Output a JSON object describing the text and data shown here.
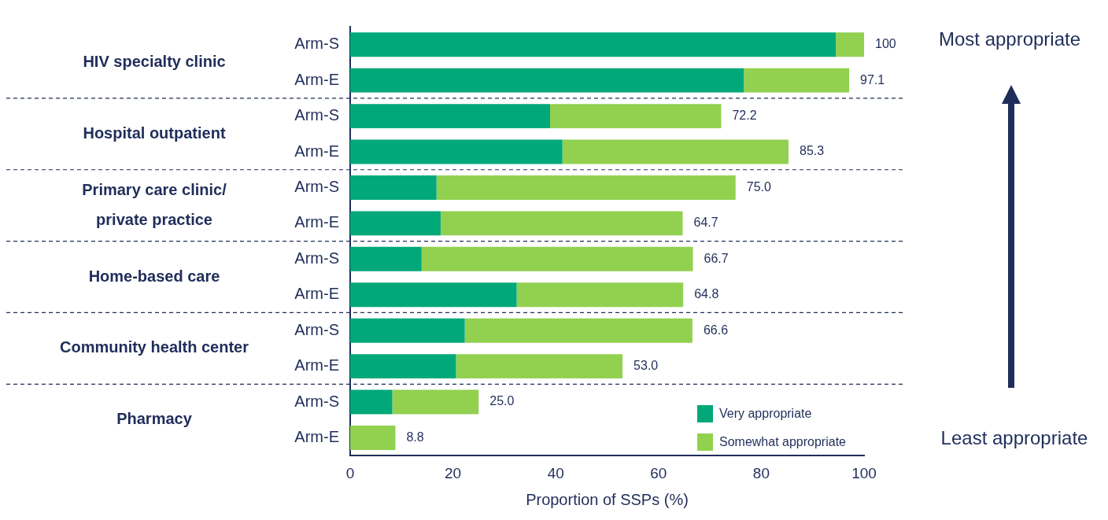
{
  "chart_data": {
    "type": "bar",
    "orientation": "horizontal",
    "stacked": true,
    "categories": [
      "Arm-S",
      "Arm-E",
      "Arm-S",
      "Arm-E",
      "Arm-S",
      "Arm-E",
      "Arm-S",
      "Arm-E",
      "Arm-S",
      "Arm-E",
      "Arm-S",
      "Arm-E"
    ],
    "series": [
      {
        "name": "Very appropriate",
        "color": "#00a87a",
        "values": [
          94.5,
          76.6,
          38.9,
          41.3,
          16.8,
          17.6,
          13.9,
          32.4,
          22.3,
          20.6,
          8.2,
          0
        ]
      },
      {
        "name": "Somewhat appropriate",
        "color": "#92d050",
        "values": [
          5.5,
          20.5,
          33.3,
          44.0,
          58.2,
          47.1,
          52.8,
          32.4,
          44.3,
          32.4,
          16.8,
          8.8
        ]
      }
    ],
    "totals": [
      "100",
      "97.1",
      "72.2",
      "85.3",
      "75.0",
      "64.7",
      "66.7",
      "64.8",
      "66.6",
      "53.0",
      "25.0",
      "8.8"
    ],
    "xlim": [
      0,
      100
    ],
    "xticks": [
      0,
      20,
      40,
      60,
      80,
      100
    ],
    "xlabel": "Proportion of SSPs (%)",
    "grid": false,
    "legend": "bottom right",
    "annotations": [
      "HIV specialty clinic",
      "Hospital outpatient",
      "Primary care clinic/\nprivate practice",
      "Home-based care",
      "Community health center",
      "Pharmacy",
      "Most appropriate",
      "Least appropriate"
    ]
  }
}
